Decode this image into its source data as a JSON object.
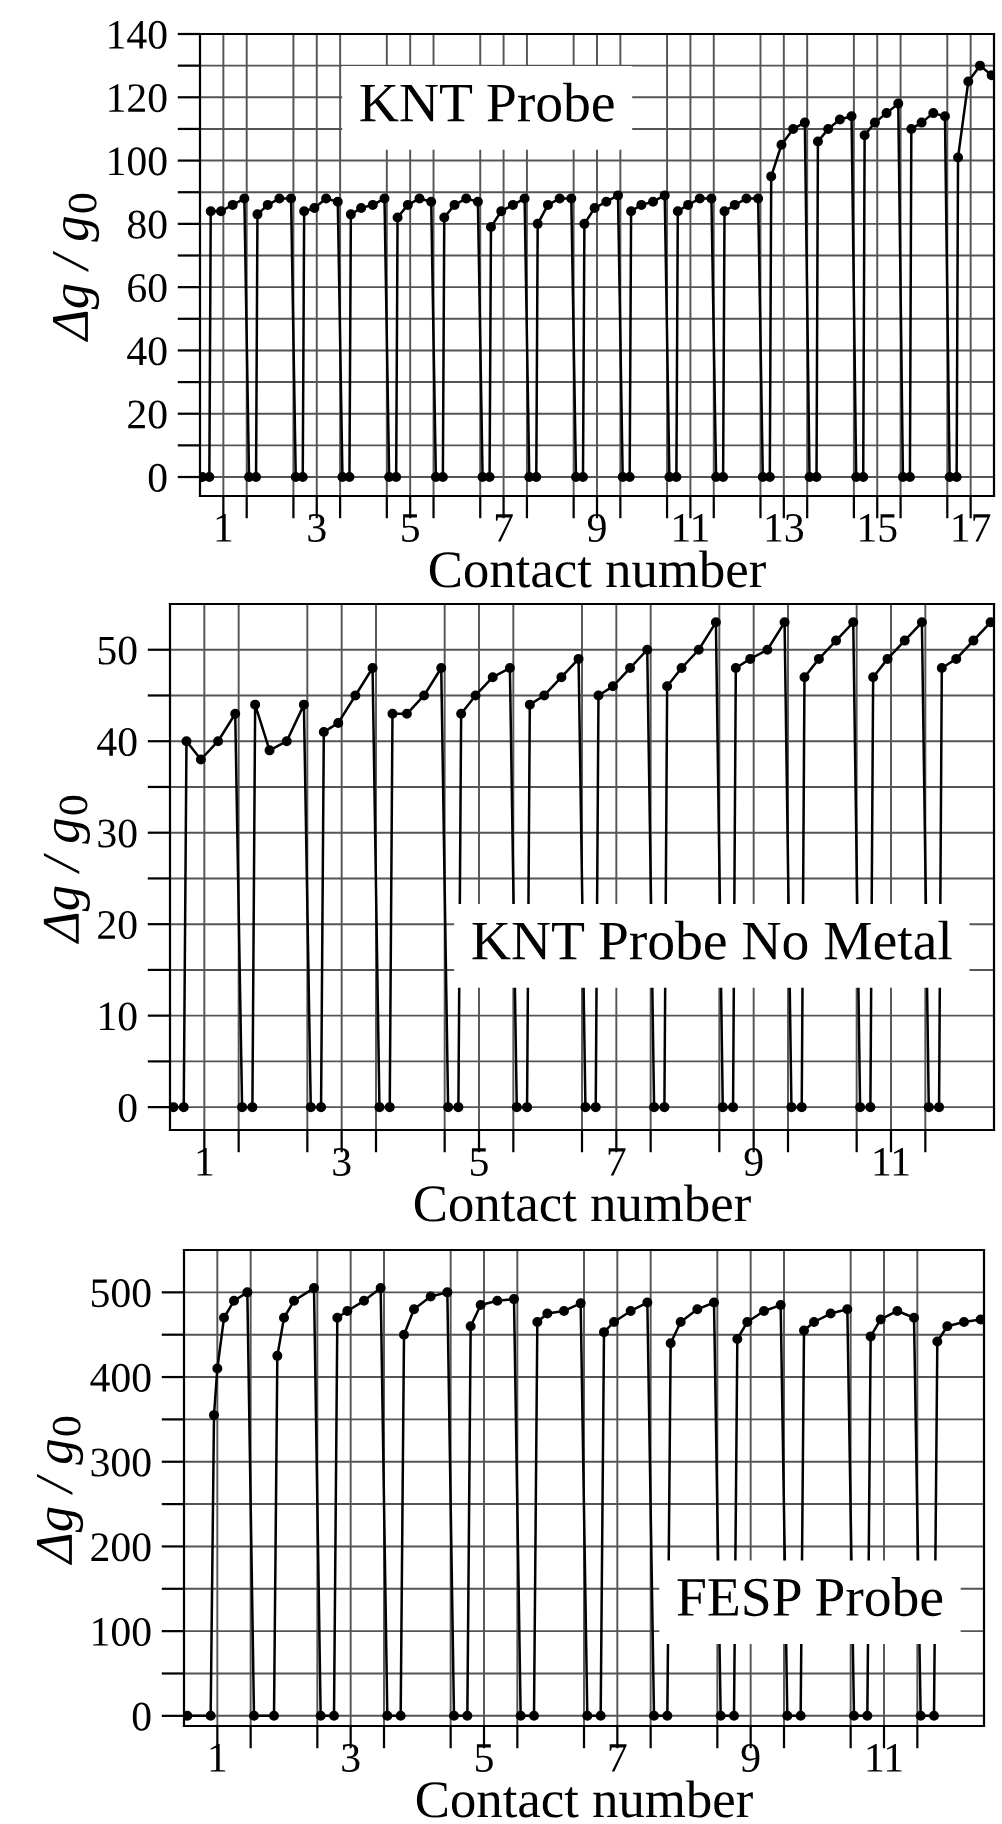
{
  "chart_data": [
    {
      "type": "line",
      "xlabel": "Contact number",
      "ylabel": "Δg / g$_{0}$",
      "annotations": [
        "KNT Probe"
      ],
      "marker": "circle",
      "grid": true,
      "xlim": [
        0.5,
        17.5
      ],
      "ylim": [
        -6,
        140
      ],
      "xticks": [
        {
          "value": 1,
          "label": "1"
        },
        {
          "value": 1.5,
          "label": null
        },
        {
          "value": 2.5,
          "label": null
        },
        {
          "value": 3,
          "label": "3"
        },
        {
          "value": 3.5,
          "label": null
        },
        {
          "value": 4.5,
          "label": null
        },
        {
          "value": 5,
          "label": "5"
        },
        {
          "value": 5.5,
          "label": null
        },
        {
          "value": 6.5,
          "label": null
        },
        {
          "value": 7,
          "label": "7"
        },
        {
          "value": 7.5,
          "label": null
        },
        {
          "value": 8.5,
          "label": null
        },
        {
          "value": 9,
          "label": "9"
        },
        {
          "value": 9.5,
          "label": null
        },
        {
          "value": 10.5,
          "label": null
        },
        {
          "value": 11,
          "label": "11"
        },
        {
          "value": 11.5,
          "label": null
        },
        {
          "value": 12.5,
          "label": null
        },
        {
          "value": 13,
          "label": "13"
        },
        {
          "value": 13.5,
          "label": null
        },
        {
          "value": 14.5,
          "label": null
        },
        {
          "value": 15,
          "label": "15"
        },
        {
          "value": 15.5,
          "label": null
        },
        {
          "value": 16.5,
          "label": null
        },
        {
          "value": 17,
          "label": "17"
        }
      ],
      "yticks": [
        0,
        {
          "value": 10,
          "label": null
        },
        20,
        {
          "value": 30,
          "label": null
        },
        40,
        {
          "value": 50,
          "label": null
        },
        60,
        {
          "value": 70,
          "label": null
        },
        80,
        {
          "value": 90,
          "label": null
        },
        100,
        {
          "value": 110,
          "label": null
        },
        120,
        {
          "value": 130,
          "label": null
        },
        140
      ],
      "series": [
        {
          "color": "#000000",
          "x": [
            0.55,
            0.7,
            0.73,
            0.95,
            1.2,
            1.45,
            1.55,
            1.7,
            1.73,
            1.95,
            2.2,
            2.45,
            2.55,
            2.7,
            2.73,
            2.95,
            3.2,
            3.45,
            3.55,
            3.7,
            3.73,
            3.95,
            4.2,
            4.45,
            4.55,
            4.7,
            4.73,
            4.95,
            5.2,
            5.45,
            5.55,
            5.7,
            5.73,
            5.95,
            6.2,
            6.45,
            6.55,
            6.7,
            6.73,
            6.95,
            7.2,
            7.45,
            7.55,
            7.7,
            7.73,
            7.95,
            8.2,
            8.45,
            8.55,
            8.7,
            8.73,
            8.95,
            9.2,
            9.45,
            9.55,
            9.7,
            9.73,
            9.95,
            10.2,
            10.45,
            10.55,
            10.7,
            10.73,
            10.95,
            11.2,
            11.45,
            11.55,
            11.7,
            11.73,
            11.95,
            12.2,
            12.45,
            12.55,
            12.7,
            12.73,
            12.95,
            13.2,
            13.45,
            13.55,
            13.7,
            13.73,
            13.95,
            14.2,
            14.45,
            14.55,
            14.7,
            14.73,
            14.95,
            15.2,
            15.45,
            15.55,
            15.7,
            15.73,
            15.95,
            16.2,
            16.45,
            16.55,
            16.7,
            16.73,
            16.95,
            17.2,
            17.45
          ],
          "values": [
            0,
            0,
            84,
            84,
            86,
            88,
            0,
            0,
            83,
            86,
            88,
            88,
            0,
            0,
            84,
            85,
            88,
            87,
            0,
            0,
            83,
            85,
            86,
            88,
            0,
            0,
            82,
            86,
            88,
            87,
            0,
            0,
            82,
            86,
            88,
            87,
            0,
            0,
            79,
            84,
            86,
            88,
            0,
            0,
            80,
            86,
            88,
            88,
            0,
            0,
            80,
            85,
            87,
            89,
            0,
            0,
            84,
            86,
            87,
            89,
            0,
            0,
            84,
            86,
            88,
            88,
            0,
            0,
            84,
            86,
            88,
            88,
            0,
            0,
            95,
            105,
            110,
            112,
            0,
            0,
            106,
            110,
            113,
            114,
            0,
            0,
            108,
            112,
            115,
            118,
            0,
            0,
            110,
            112,
            115,
            114,
            0,
            0,
            101,
            125,
            130,
            127
          ]
        }
      ]
    },
    {
      "type": "line",
      "xlabel": "Contact number",
      "ylabel": "Δg / g$_{0}$",
      "annotations": [
        "KNT Probe No Metal"
      ],
      "marker": "circle",
      "grid": true,
      "xlim": [
        0.5,
        12.5
      ],
      "ylim": [
        -2.5,
        55
      ],
      "xticks": [
        {
          "value": 1,
          "label": "1"
        },
        {
          "value": 1.5,
          "label": null
        },
        {
          "value": 2.5,
          "label": null
        },
        {
          "value": 3,
          "label": "3"
        },
        {
          "value": 3.5,
          "label": null
        },
        {
          "value": 4.5,
          "label": null
        },
        {
          "value": 5,
          "label": "5"
        },
        {
          "value": 5.5,
          "label": null
        },
        {
          "value": 6.5,
          "label": null
        },
        {
          "value": 7,
          "label": "7"
        },
        {
          "value": 7.5,
          "label": null
        },
        {
          "value": 8.5,
          "label": null
        },
        {
          "value": 9,
          "label": "9"
        },
        {
          "value": 9.5,
          "label": null
        },
        {
          "value": 10.5,
          "label": null
        },
        {
          "value": 11,
          "label": "11"
        },
        {
          "value": 11.5,
          "label": null
        }
      ],
      "yticks": [
        0,
        {
          "value": 5,
          "label": null
        },
        10,
        {
          "value": 15,
          "label": null
        },
        20,
        {
          "value": 25,
          "label": null
        },
        30,
        {
          "value": 35,
          "label": null
        },
        40,
        {
          "value": 45,
          "label": null
        },
        50
      ],
      "series": [
        {
          "color": "#000000",
          "x": [
            0.55,
            0.7,
            0.74,
            0.95,
            1.2,
            1.45,
            1.55,
            1.7,
            1.74,
            1.95,
            2.2,
            2.45,
            2.55,
            2.7,
            2.74,
            2.95,
            3.2,
            3.45,
            3.55,
            3.7,
            3.74,
            3.95,
            4.2,
            4.45,
            4.55,
            4.7,
            4.74,
            4.95,
            5.2,
            5.45,
            5.55,
            5.7,
            5.74,
            5.95,
            6.2,
            6.45,
            6.55,
            6.7,
            6.74,
            6.95,
            7.2,
            7.45,
            7.55,
            7.7,
            7.74,
            7.95,
            8.2,
            8.45,
            8.55,
            8.7,
            8.74,
            8.95,
            9.2,
            9.45,
            9.55,
            9.7,
            9.74,
            9.95,
            10.2,
            10.45,
            10.55,
            10.7,
            10.74,
            10.95,
            11.2,
            11.45,
            11.55,
            11.7,
            11.74,
            11.95,
            12.2,
            12.45
          ],
          "values": [
            0,
            0,
            40,
            38,
            40,
            43,
            0,
            0,
            44,
            39,
            40,
            44,
            0,
            0,
            41,
            42,
            45,
            48,
            0,
            0,
            43,
            43,
            45,
            48,
            0,
            0,
            43,
            45,
            47,
            48,
            0,
            0,
            44,
            45,
            47,
            49,
            0,
            0,
            45,
            46,
            48,
            50,
            0,
            0,
            46,
            48,
            50,
            53,
            0,
            0,
            48,
            49,
            50,
            53,
            0,
            0,
            47,
            49,
            51,
            53,
            0,
            0,
            47,
            49,
            51,
            53,
            0,
            0,
            48,
            49,
            51,
            53
          ]
        }
      ]
    },
    {
      "type": "line",
      "xlabel": "Contact number",
      "ylabel": "Δg / g$_{0}$",
      "annotations": [
        "FESP Probe"
      ],
      "marker": "circle",
      "grid": true,
      "xlim": [
        0.5,
        12.5
      ],
      "ylim": [
        -12,
        550
      ],
      "xticks": [
        {
          "value": 1,
          "label": "1"
        },
        {
          "value": 1.5,
          "label": null
        },
        {
          "value": 2.5,
          "label": null
        },
        {
          "value": 3,
          "label": "3"
        },
        {
          "value": 3.5,
          "label": null
        },
        {
          "value": 4.5,
          "label": null
        },
        {
          "value": 5,
          "label": "5"
        },
        {
          "value": 5.5,
          "label": null
        },
        {
          "value": 6.5,
          "label": null
        },
        {
          "value": 7,
          "label": "7"
        },
        {
          "value": 7.5,
          "label": null
        },
        {
          "value": 8.5,
          "label": null
        },
        {
          "value": 9,
          "label": "9"
        },
        {
          "value": 9.5,
          "label": null
        },
        {
          "value": 10.5,
          "label": null
        },
        {
          "value": 11,
          "label": "11"
        },
        {
          "value": 11.5,
          "label": null
        }
      ],
      "yticks": [
        0,
        {
          "value": 50,
          "label": null
        },
        100,
        {
          "value": 150,
          "label": null
        },
        200,
        {
          "value": 250,
          "label": null
        },
        300,
        {
          "value": 350,
          "label": null
        },
        400,
        {
          "value": 450,
          "label": null
        },
        500
      ],
      "series": [
        {
          "color": "#000000",
          "x": [
            0.55,
            0.9,
            0.95,
            1.0,
            1.1,
            1.25,
            1.45,
            1.55,
            1.85,
            1.9,
            2.0,
            2.15,
            2.45,
            2.55,
            2.75,
            2.8,
            2.95,
            3.2,
            3.45,
            3.55,
            3.75,
            3.8,
            3.95,
            4.2,
            4.45,
            4.55,
            4.75,
            4.8,
            4.95,
            5.2,
            5.45,
            5.55,
            5.75,
            5.8,
            5.95,
            6.2,
            6.45,
            6.55,
            6.75,
            6.8,
            6.95,
            7.2,
            7.45,
            7.55,
            7.75,
            7.8,
            7.95,
            8.2,
            8.45,
            8.55,
            8.75,
            8.8,
            8.95,
            9.2,
            9.45,
            9.55,
            9.75,
            9.8,
            9.95,
            10.2,
            10.45,
            10.55,
            10.75,
            10.8,
            10.95,
            11.2,
            11.45,
            11.55,
            11.75,
            11.8,
            11.95,
            12.2,
            12.45
          ],
          "values": [
            0,
            0,
            355,
            410,
            470,
            490,
            500,
            0,
            0,
            425,
            470,
            490,
            505,
            0,
            0,
            470,
            478,
            490,
            505,
            0,
            0,
            450,
            480,
            495,
            500,
            0,
            0,
            460,
            485,
            490,
            492,
            0,
            0,
            465,
            475,
            478,
            487,
            0,
            0,
            453,
            465,
            478,
            488,
            0,
            0,
            440,
            465,
            480,
            488,
            0,
            0,
            445,
            465,
            478,
            485,
            0,
            0,
            455,
            465,
            475,
            480,
            0,
            0,
            448,
            468,
            478,
            470,
            0,
            0,
            442,
            460,
            465,
            468
          ]
        }
      ]
    }
  ]
}
